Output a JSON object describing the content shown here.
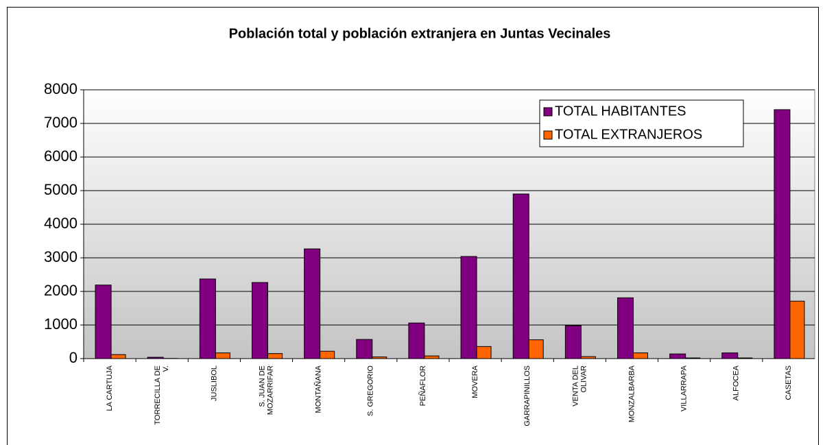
{
  "chart_data": {
    "type": "bar",
    "title": "Población total y población extranjera en Juntas Vecinales",
    "categories": [
      "LA CARTUJA",
      "TORRECILLA DE V.",
      "JUSLIBOL",
      "S. JUAN DE MOZARRIFAR",
      "MONTAÑANA",
      "S. GREGORIO",
      "PEÑAFLOR",
      "MOVERA",
      "GARRAPINILLOS",
      "VENTA DEL OLIVAR",
      "MONZALBARBA",
      "VILLARRAPA",
      "ALFOCEA",
      "CASETAS"
    ],
    "series": [
      {
        "name": "TOTAL HABITANTES",
        "color": "#800080",
        "values": [
          2190,
          40,
          2370,
          2265,
          3265,
          570,
          1060,
          3040,
          4900,
          980,
          1810,
          140,
          170,
          7410
        ]
      },
      {
        "name": "TOTAL EXTRANJEROS",
        "color": "#ff6600",
        "values": [
          120,
          5,
          170,
          150,
          220,
          50,
          80,
          360,
          560,
          60,
          170,
          20,
          20,
          1710
        ]
      }
    ],
    "ylim": [
      0,
      8000
    ],
    "yticks": [
      0,
      1000,
      2000,
      3000,
      4000,
      5000,
      6000,
      7000,
      8000
    ],
    "grid": true,
    "legend": "top-right"
  }
}
